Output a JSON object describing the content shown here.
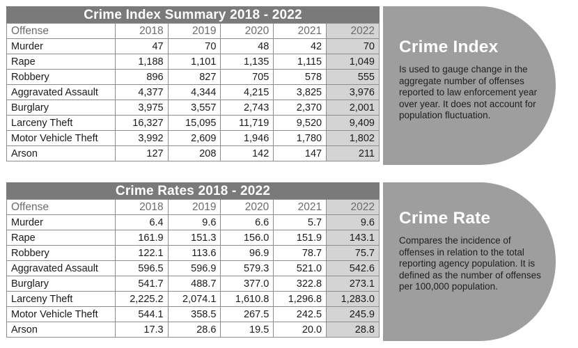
{
  "crime_index": {
    "title": "Crime Index Summary 2018 - 2022",
    "headers": [
      "Offense",
      "2018",
      "2019",
      "2020",
      "2021",
      "2022"
    ],
    "rows": [
      [
        "Murder",
        "47",
        "70",
        "48",
        "42",
        "70"
      ],
      [
        "Rape",
        "1,188",
        "1,101",
        "1,135",
        "1,115",
        "1,049"
      ],
      [
        "Robbery",
        "896",
        "827",
        "705",
        "578",
        "555"
      ],
      [
        "Aggravated Assault",
        "4,377",
        "4,344",
        "4,215",
        "3,825",
        "3,976"
      ],
      [
        "Burglary",
        "3,975",
        "3,557",
        "2,743",
        "2,370",
        "2,001"
      ],
      [
        "Larceny Theft",
        "16,327",
        "15,095",
        "11,719",
        "9,520",
        "9,409"
      ],
      [
        "Motor Vehicle Theft",
        "3,992",
        "2,609",
        "1,946",
        "1,780",
        "1,802"
      ],
      [
        "Arson",
        "127",
        "208",
        "142",
        "147",
        "211"
      ]
    ]
  },
  "crime_rate": {
    "title": "Crime Rates 2018 - 2022",
    "headers": [
      "Offense",
      "2018",
      "2019",
      "2020",
      "2021",
      "2022"
    ],
    "rows": [
      [
        "Murder",
        "6.4",
        "9.6",
        "6.6",
        "5.7",
        "9.6"
      ],
      [
        "Rape",
        "161.9",
        "151.3",
        "156.0",
        "151.9",
        "143.1"
      ],
      [
        "Robbery",
        "122.1",
        "113.6",
        "96.9",
        "78.7",
        "75.7"
      ],
      [
        "Aggravated Assault",
        "596.5",
        "596.9",
        "579.3",
        "521.0",
        "542.6"
      ],
      [
        "Burglary",
        "541.7",
        "488.7",
        "377.0",
        "322.8",
        "273.1"
      ],
      [
        "Larceny Theft",
        "2,225.2",
        "2,074.1",
        "1,610.8",
        "1,296.8",
        "1,283.0"
      ],
      [
        "Motor Vehicle Theft",
        "544.1",
        "358.5",
        "267.5",
        "242.5",
        "245.9"
      ],
      [
        "Arson",
        "17.3",
        "28.6",
        "19.5",
        "20.0",
        "28.8"
      ]
    ]
  },
  "panels": {
    "index": {
      "title": "Crime Index",
      "text": "Is used to gauge change in the aggregate number of offenses reported to law enforcement year over year. It does not account for population fluctuation."
    },
    "rate": {
      "title": "Crime Rate",
      "text": "Compares the incidence of offenses in relation to the total reporting agency population. It is defined as the number of offenses per 100,000 population."
    }
  },
  "colors": {
    "title_bar": "#7a7a7a",
    "highlight_column": "#d4d4d4",
    "panel": "#9e9e9e"
  }
}
